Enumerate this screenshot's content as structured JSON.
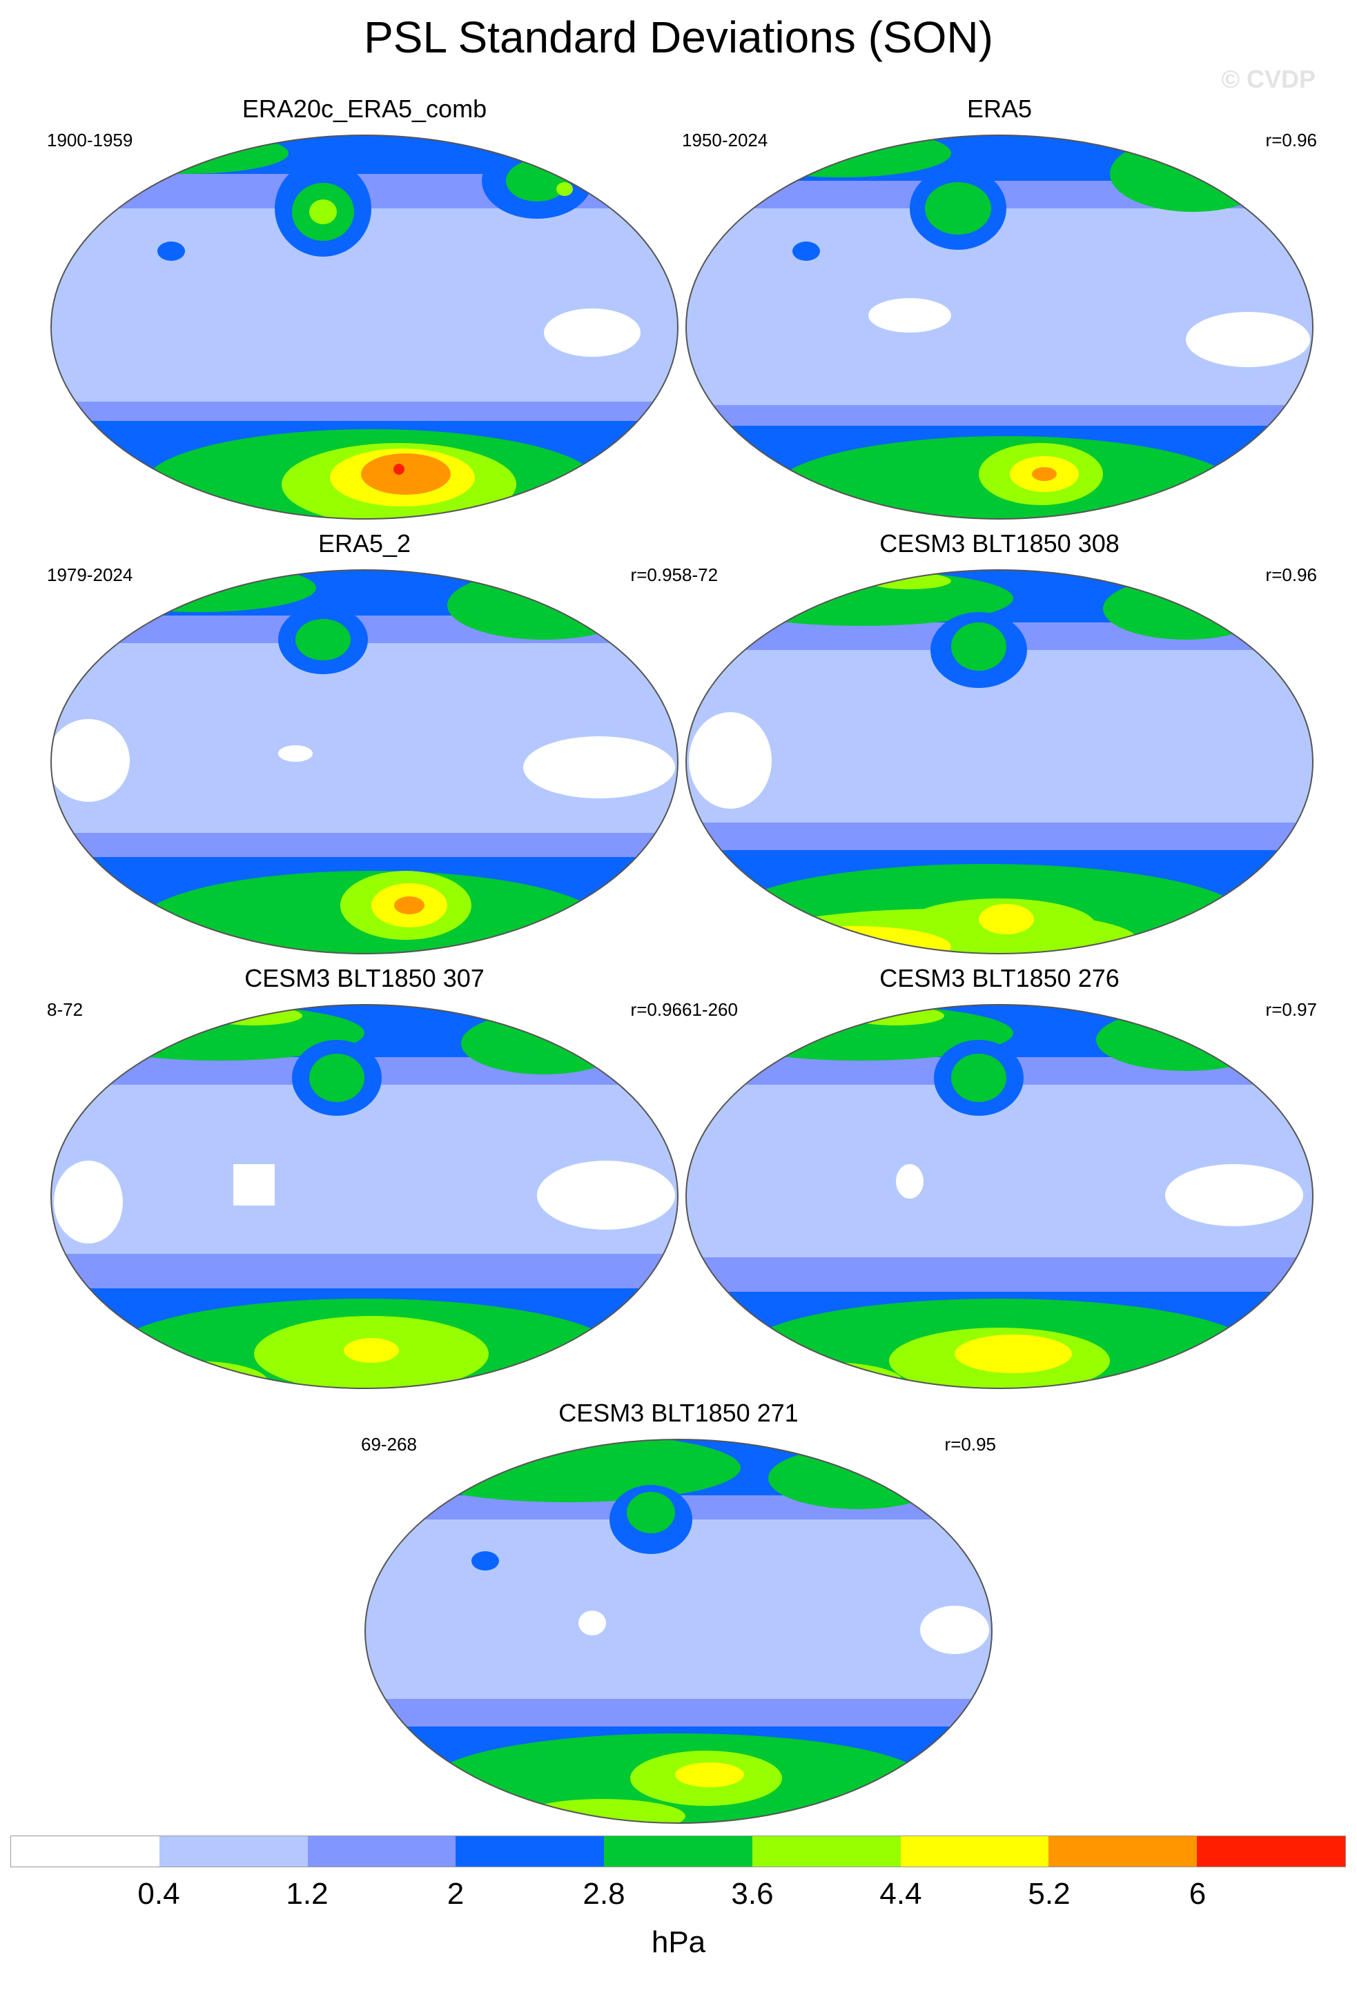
{
  "title": "PSL Standard Deviations (SON)",
  "watermark": "© CVDP",
  "units": "hPa",
  "colorbar": {
    "colors": [
      "#ffffff",
      "#b4c8ff",
      "#8296ff",
      "#0a64ff",
      "#00c832",
      "#96ff00",
      "#ffff00",
      "#ff9600",
      "#ff1e00"
    ],
    "labels": [
      "0.4",
      "1.2",
      "2",
      "2.8",
      "3.6",
      "4.4",
      "5.2",
      "6"
    ]
  },
  "panels": [
    {
      "title": "ERA20c_ERA5_comb",
      "years": "1900-1959",
      "corr": ""
    },
    {
      "title": "ERA5",
      "years": "1950-2024",
      "corr": "r=0.96"
    },
    {
      "title": "ERA5_2",
      "years": "1979-2024",
      "corr": "r=0.95"
    },
    {
      "title": "CESM3 BLT1850 308",
      "years": "8-72",
      "corr": "r=0.96"
    },
    {
      "title": "CESM3 BLT1850 307",
      "years": "8-72",
      "corr": "r=0.96"
    },
    {
      "title": "CESM3 BLT1850 276",
      "years": "61-260",
      "corr": "r=0.97"
    },
    {
      "title": "CESM3 BLT1850 271",
      "years": "69-268",
      "corr": "r=0.95"
    }
  ]
}
